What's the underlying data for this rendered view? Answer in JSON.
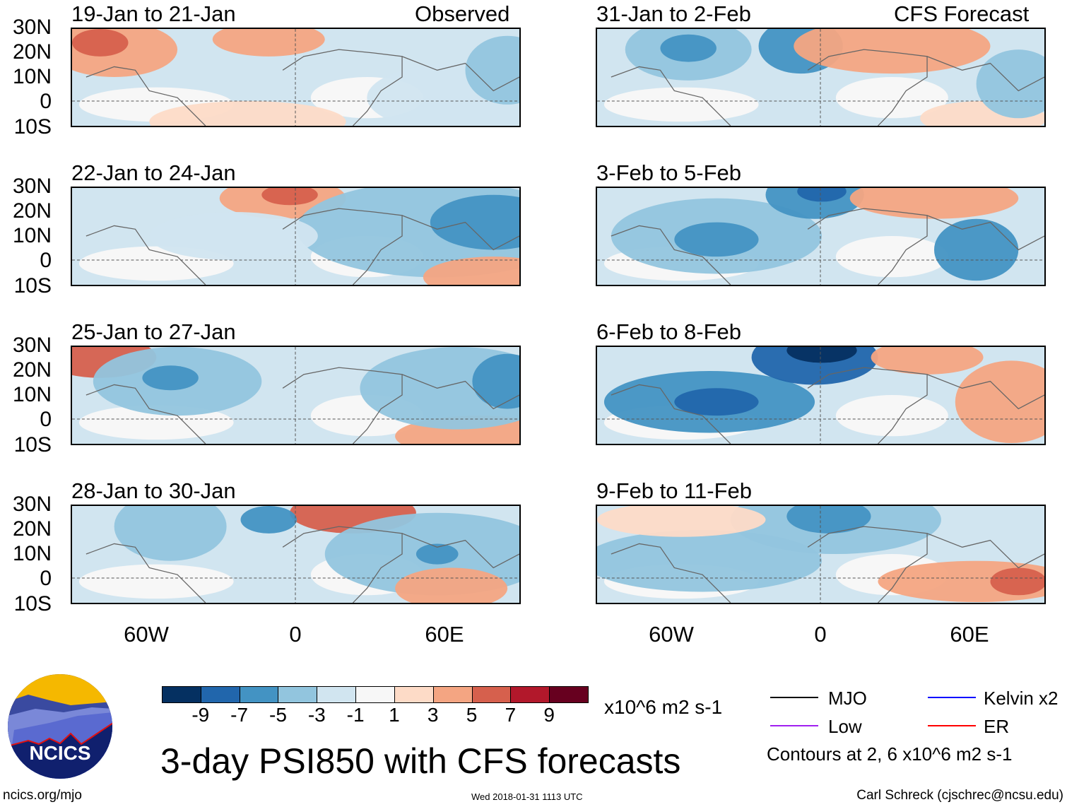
{
  "header": {
    "observed_label": "Observed",
    "forecast_label": "CFS Forecast"
  },
  "panels": {
    "observed": [
      {
        "title": "19-Jan to 21-Jan"
      },
      {
        "title": "22-Jan to 24-Jan"
      },
      {
        "title": "25-Jan to 27-Jan"
      },
      {
        "title": "28-Jan to 30-Jan"
      }
    ],
    "forecast": [
      {
        "title": "31-Jan to 2-Feb"
      },
      {
        "title": "3-Feb to 5-Feb"
      },
      {
        "title": "6-Feb to 8-Feb"
      },
      {
        "title": "9-Feb to 11-Feb"
      }
    ]
  },
  "axes": {
    "lat_ticks": [
      "30N",
      "20N",
      "10N",
      "0",
      "10S"
    ],
    "lon_ticks": [
      "60W",
      "0",
      "60E"
    ]
  },
  "colorbar": {
    "colors": [
      "#053061",
      "#2166ac",
      "#4393c3",
      "#92c5de",
      "#d1e5f0",
      "#f7f7f7",
      "#fddbc7",
      "#f4a582",
      "#d6604d",
      "#b2182b",
      "#67001f"
    ],
    "labels": [
      "-9",
      "-7",
      "-5",
      "-3",
      "-1",
      "1",
      "3",
      "5",
      "7",
      "9"
    ],
    "units": "x10^6 m2 s-1"
  },
  "legend": {
    "items": [
      {
        "label": "MJO",
        "color": "#000000"
      },
      {
        "label": "Low",
        "color": "#a020f0"
      },
      {
        "label": "Kelvin x2",
        "color": "#0000ff"
      },
      {
        "label": "ER",
        "color": "#ff0000"
      }
    ],
    "contours_note": "Contours at 2, 6 x10^6 m2 s-1"
  },
  "title": "3-day PSI850 with CFS forecasts",
  "footer": {
    "url": "ncics.org/mjo",
    "timestamp": "Wed 2018-01-31 1113 UTC",
    "credit": "Carl Schreck (cjschrec@ncsu.edu)"
  },
  "logo": {
    "text": "NCICS"
  }
}
